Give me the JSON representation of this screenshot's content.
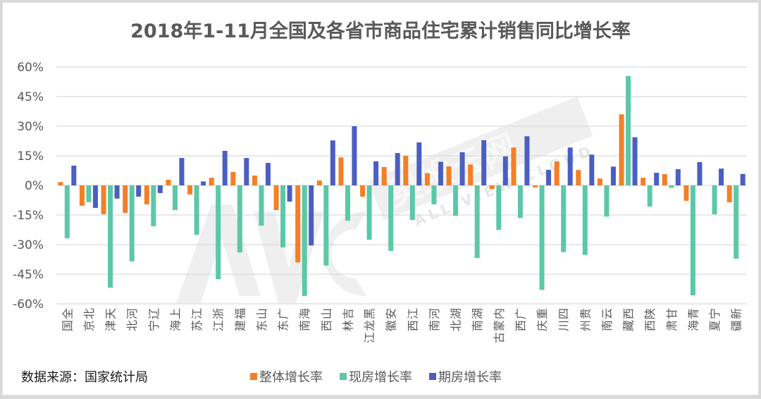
{
  "chart_data": {
    "type": "bar",
    "title": "2018年1-11月全国及各省市商品住宅累计销售同比增长率",
    "xlabel": "",
    "ylabel": "",
    "ylim": [
      -60,
      60
    ],
    "yticks": [
      "60%",
      "45%",
      "30%",
      "15%",
      "0%",
      "-15%",
      "-30%",
      "-45%",
      "-60%"
    ],
    "ytick_values": [
      60,
      45,
      30,
      15,
      0,
      -15,
      -30,
      -45,
      -60
    ],
    "grid": true,
    "legend_position": "bottom",
    "categories": [
      "全国",
      "北京",
      "天津",
      "河北",
      "辽宁",
      "上海",
      "江苏",
      "浙江",
      "福建",
      "山东",
      "广东",
      "海南",
      "山西",
      "吉林",
      "黑龙江",
      "安徽",
      "江西",
      "河南",
      "湖北",
      "湖南",
      "内蒙古",
      "广西",
      "重庆",
      "四川",
      "贵州",
      "云南",
      "西藏",
      "陕西",
      "甘肃",
      "青海",
      "宁夏",
      "新疆"
    ],
    "series": [
      {
        "name": "整体增长率",
        "color": "#F47F26",
        "values": [
          1.7,
          -10.3,
          -14.6,
          -14.0,
          -9.6,
          2.9,
          -4.6,
          3.9,
          6.8,
          5.0,
          -12.5,
          -39.0,
          2.5,
          14.2,
          -5.7,
          9.3,
          15.0,
          6.2,
          9.6,
          10.6,
          -1.8,
          19.2,
          -1.0,
          12.1,
          7.8,
          3.5,
          36.0,
          3.9,
          5.7,
          -7.8,
          0.0,
          -8.6
        ]
      },
      {
        "name": "现房增长率",
        "color": "#5BC8A8",
        "values": [
          -26.8,
          -8.5,
          -51.8,
          -38.5,
          -20.7,
          -12.5,
          -25.0,
          -47.5,
          -34.0,
          -20.4,
          -31.4,
          -56.0,
          -40.6,
          -17.9,
          -27.5,
          -33.2,
          -17.5,
          -9.6,
          -15.4,
          -36.8,
          -22.5,
          -16.5,
          -52.9,
          -33.8,
          -35.2,
          -15.8,
          55.4,
          -10.7,
          -1.2,
          -55.7,
          -14.6,
          -37.1
        ]
      },
      {
        "name": "期房增长率",
        "color": "#4A5FC1",
        "values": [
          10.0,
          -11.4,
          -6.7,
          -5.7,
          -3.9,
          13.9,
          2.0,
          17.5,
          13.9,
          11.4,
          -8.2,
          -30.4,
          22.8,
          30.0,
          12.2,
          16.4,
          21.8,
          12.0,
          16.8,
          22.9,
          14.7,
          24.9,
          7.9,
          19.2,
          15.6,
          9.5,
          24.4,
          6.4,
          8.2,
          11.8,
          8.5,
          5.8
        ]
      }
    ]
  },
  "footer": {
    "source": "数据来源：国家统计局"
  },
  "legend": [
    {
      "label": "整体增长率",
      "color": "#F47F26"
    },
    {
      "label": "现房增长率",
      "color": "#5BC8A8"
    },
    {
      "label": "期房增长率",
      "color": "#4A5FC1"
    }
  ],
  "watermark": {
    "brand": "AVC",
    "name": "奥维云网",
    "sub": "ALL VIEW CLOUD"
  }
}
